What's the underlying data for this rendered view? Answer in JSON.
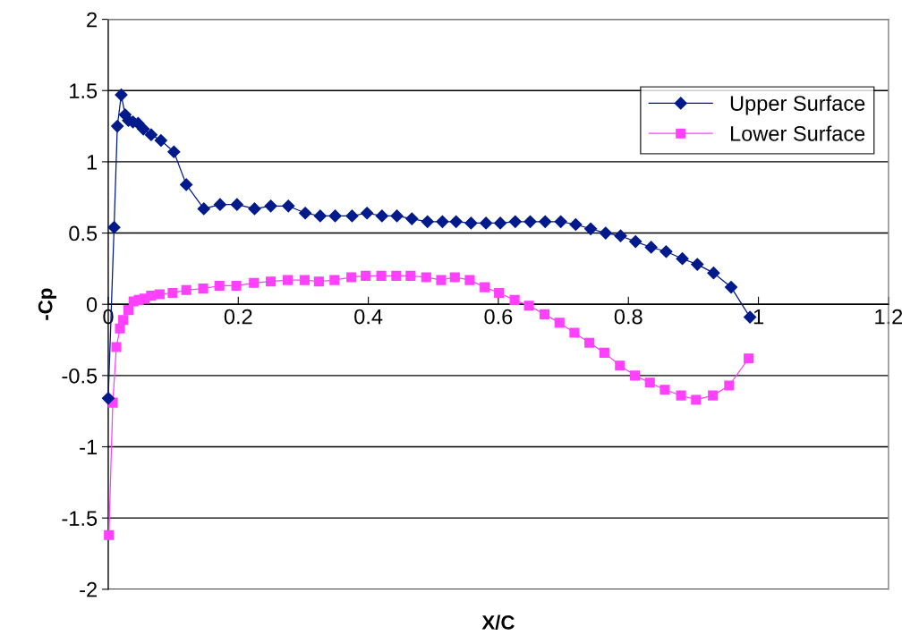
{
  "chart_data": {
    "type": "line",
    "xlabel": "X/C",
    "ylabel": "-Cp",
    "xlim": [
      0,
      1.2
    ],
    "xticks": [
      0,
      0.2,
      0.4,
      0.6,
      0.8,
      1,
      1.2
    ],
    "ylim": [
      -2,
      2
    ],
    "yticks": [
      -2,
      -1.5,
      -1,
      -0.5,
      0,
      0.5,
      1,
      1.5,
      2
    ],
    "grid": "y",
    "legend": "top right",
    "line_style": "solid",
    "series": [
      {
        "name": "Upper Surface",
        "color": "#001a8c",
        "marker": "diamond",
        "x": [
          0,
          0.009,
          0.014,
          0.02,
          0.026,
          0.031,
          0.038,
          0.046,
          0.054,
          0.066,
          0.081,
          0.101,
          0.12,
          0.147,
          0.172,
          0.198,
          0.225,
          0.25,
          0.277,
          0.303,
          0.326,
          0.349,
          0.375,
          0.398,
          0.421,
          0.444,
          0.467,
          0.491,
          0.514,
          0.535,
          0.558,
          0.581,
          0.603,
          0.626,
          0.649,
          0.672,
          0.696,
          0.719,
          0.742,
          0.765,
          0.788,
          0.811,
          0.835,
          0.858,
          0.883,
          0.906,
          0.931,
          0.958,
          0.987
        ],
        "values": [
          -0.66,
          0.54,
          1.25,
          1.47,
          1.33,
          1.29,
          1.28,
          1.27,
          1.23,
          1.19,
          1.15,
          1.07,
          0.84,
          0.67,
          0.7,
          0.7,
          0.67,
          0.69,
          0.69,
          0.64,
          0.62,
          0.62,
          0.62,
          0.64,
          0.62,
          0.62,
          0.6,
          0.58,
          0.58,
          0.58,
          0.57,
          0.57,
          0.57,
          0.58,
          0.58,
          0.58,
          0.58,
          0.56,
          0.53,
          0.5,
          0.48,
          0.44,
          0.4,
          0.37,
          0.32,
          0.28,
          0.22,
          0.12,
          -0.09
        ]
      },
      {
        "name": "Lower Surface",
        "color": "#ff40ff",
        "marker": "square",
        "x": [
          0.001,
          0.007,
          0.0125,
          0.018,
          0.023,
          0.031,
          0.039,
          0.047,
          0.056,
          0.066,
          0.079,
          0.099,
          0.12,
          0.146,
          0.171,
          0.197,
          0.224,
          0.25,
          0.276,
          0.302,
          0.324,
          0.348,
          0.374,
          0.396,
          0.42,
          0.443,
          0.465,
          0.489,
          0.512,
          0.533,
          0.556,
          0.579,
          0.601,
          0.625,
          0.647,
          0.671,
          0.694,
          0.717,
          0.74,
          0.763,
          0.787,
          0.81,
          0.833,
          0.856,
          0.881,
          0.904,
          0.93,
          0.955,
          0.985
        ],
        "values": [
          -1.62,
          -0.69,
          -0.3,
          -0.17,
          -0.11,
          -0.04,
          0.02,
          0.03,
          0.04,
          0.06,
          0.07,
          0.08,
          0.1,
          0.11,
          0.13,
          0.13,
          0.15,
          0.16,
          0.17,
          0.17,
          0.16,
          0.17,
          0.19,
          0.2,
          0.2,
          0.2,
          0.2,
          0.19,
          0.17,
          0.19,
          0.17,
          0.12,
          0.08,
          0.03,
          -0.01,
          -0.07,
          -0.13,
          -0.2,
          -0.27,
          -0.34,
          -0.43,
          -0.5,
          -0.55,
          -0.6,
          -0.64,
          -0.67,
          -0.64,
          -0.57,
          -0.38
        ]
      }
    ]
  }
}
